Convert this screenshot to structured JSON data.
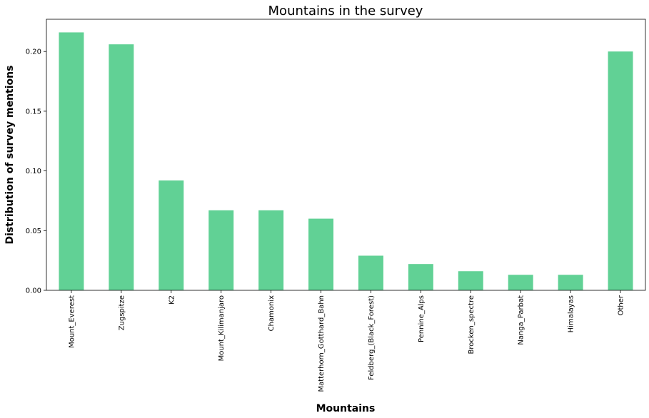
{
  "chart_data": {
    "type": "bar",
    "title": "Mountains in the survey",
    "xlabel": "Mountains",
    "ylabel": "Distribution of survey mentions",
    "categories": [
      "Mount_Everest",
      "Zugspitze",
      "K2",
      "Mount_Kilimanjaro",
      "Chamonix",
      "Matterhorn_Gotthard_Bahn",
      "Feldberg_(Black_Forest)",
      "Pennine_Alps",
      "Brocken_spectre",
      "Nanga_Parbat",
      "Himalayas",
      "Other"
    ],
    "values": [
      0.216,
      0.206,
      0.092,
      0.067,
      0.067,
      0.06,
      0.029,
      0.022,
      0.016,
      0.013,
      0.013,
      0.2
    ],
    "ylim": [
      0,
      0.227
    ],
    "yticks": [
      0.0,
      0.05,
      0.1,
      0.15,
      0.2
    ],
    "ytick_labels": [
      "0.00",
      "0.05",
      "0.10",
      "0.15",
      "0.20"
    ],
    "bar_color": "#61d195",
    "grid": false,
    "legend": "none"
  }
}
